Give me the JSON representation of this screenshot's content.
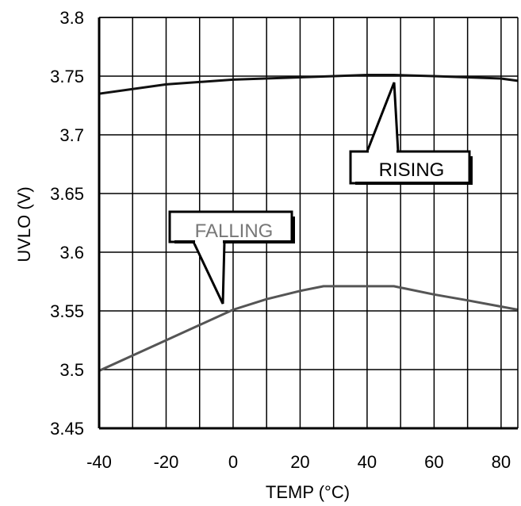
{
  "chart_data": {
    "type": "line",
    "xlabel": "TEMP (°C)",
    "ylabel": "UVLO (V)",
    "xlim": [
      -40,
      85
    ],
    "ylim": [
      3.45,
      3.8
    ],
    "xticks": [
      "-40",
      "-20",
      "0",
      "20",
      "40",
      "60",
      "80"
    ],
    "xtick_values": [
      -40,
      -20,
      0,
      20,
      40,
      60,
      80
    ],
    "yticks": [
      "3.8",
      "3.75",
      "3.7",
      "3.65",
      "3.6",
      "3.55",
      "3.5",
      "3.45"
    ],
    "ytick_values": [
      3.8,
      3.75,
      3.7,
      3.65,
      3.6,
      3.55,
      3.5,
      3.45
    ],
    "grid": true,
    "series": [
      {
        "name": "RISING",
        "color": "#111111",
        "x": [
          -40,
          -20,
          0,
          20,
          30,
          40,
          48,
          60,
          70,
          80,
          85
        ],
        "y": [
          3.735,
          3.743,
          3.747,
          3.749,
          3.75,
          3.751,
          3.751,
          3.75,
          3.749,
          3.748,
          3.746
        ]
      },
      {
        "name": "FALLING",
        "color": "#555555",
        "x": [
          -40,
          -30,
          -20,
          -10,
          0,
          10,
          20,
          27,
          40,
          48,
          60,
          70,
          85
        ],
        "y": [
          3.499,
          3.512,
          3.525,
          3.538,
          3.551,
          3.56,
          3.567,
          3.571,
          3.571,
          3.571,
          3.564,
          3.559,
          3.551
        ]
      }
    ],
    "annotations": [
      {
        "text": "RISING",
        "point_x": 48,
        "point_y": 3.745
      },
      {
        "text": "FALLING",
        "point_x": -2.5,
        "point_y": 3.553
      }
    ]
  }
}
